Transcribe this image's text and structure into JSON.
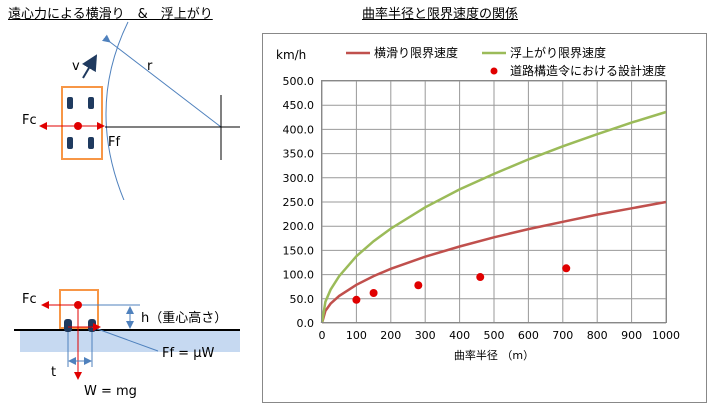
{
  "header": {
    "left_title": "遠心力による横滑り　&　浮上がり",
    "right_title": "曲率半径と限界速度の関係"
  },
  "diagram_top": {
    "label_v": "v",
    "label_r": "r",
    "label_fc": "Fc",
    "label_ff": "Ff"
  },
  "diagram_bottom": {
    "label_fc": "Fc",
    "label_h": "h（重心高さ）",
    "label_ff": "Ff = μW",
    "label_t": "t",
    "label_w": "W = mg"
  },
  "colors": {
    "sliding": "#c0504d",
    "lifting": "#9bbb59",
    "design": "#e00000",
    "vehicle": "#f79646",
    "tire": "#1f3a5f",
    "ground": "#c6d9f1",
    "arrow": "#e00000",
    "radius": "#4f81bd"
  },
  "chart_data": {
    "type": "line",
    "unit_label": "km/h",
    "xlabel": "曲率半径 （m）",
    "xlim": [
      0,
      1000
    ],
    "ylim": [
      0,
      500
    ],
    "x_ticks": [
      0,
      100,
      200,
      300,
      400,
      500,
      600,
      700,
      800,
      900,
      1000
    ],
    "y_ticks": [
      "0.0",
      "50.0",
      "100.0",
      "150.0",
      "200.0",
      "250.0",
      "300.0",
      "350.0",
      "400.0",
      "450.0",
      "500.0"
    ],
    "grid": true,
    "legend_position": "top",
    "series": [
      {
        "name": "横滑り限界速度",
        "kind": "line",
        "x": [
          0,
          10,
          25,
          50,
          100,
          150,
          200,
          300,
          400,
          500,
          600,
          700,
          800,
          900,
          1000
        ],
        "y": [
          0,
          25,
          40,
          56,
          79,
          97,
          112,
          137,
          158,
          177,
          194,
          209,
          224,
          237,
          250
        ]
      },
      {
        "name": "浮上がり限界速度",
        "kind": "line",
        "x": [
          0,
          10,
          25,
          50,
          100,
          150,
          200,
          300,
          400,
          500,
          600,
          700,
          800,
          900,
          1000
        ],
        "y": [
          0,
          44,
          69,
          97,
          138,
          169,
          195,
          239,
          276,
          308,
          338,
          365,
          390,
          414,
          436
        ]
      },
      {
        "name": "道路構造令における設計速度",
        "kind": "scatter",
        "x": [
          100,
          150,
          280,
          460,
          710
        ],
        "y": [
          48,
          62,
          78,
          95,
          113
        ]
      }
    ]
  }
}
